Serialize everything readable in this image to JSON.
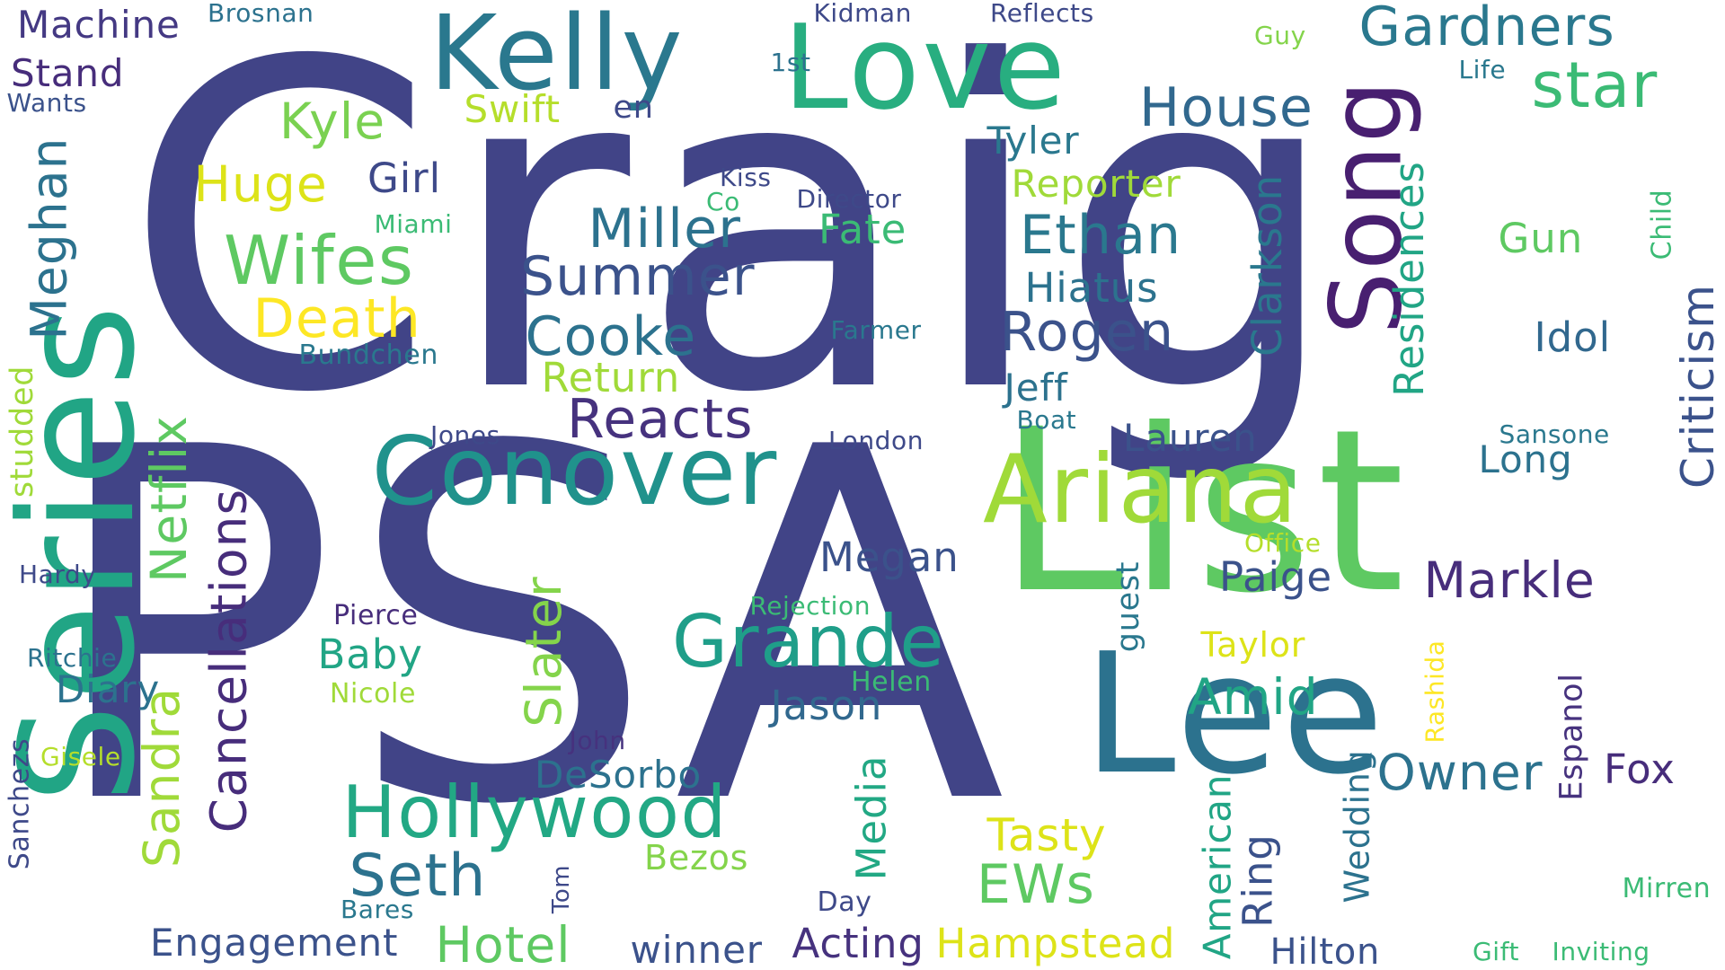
{
  "words": [
    {
      "text": "Craig",
      "color": "#414487",
      "vertical": false
    },
    {
      "text": "PSA",
      "color": "#414487",
      "vertical": false
    },
    {
      "text": "List",
      "color": "#5ec962",
      "vertical": false
    },
    {
      "text": "Lee",
      "color": "#2c728e",
      "vertical": false
    },
    {
      "text": "Series",
      "color": "#21a585",
      "vertical": true
    },
    {
      "text": "Love",
      "color": "#28ae80",
      "vertical": false
    },
    {
      "text": "Kelly",
      "color": "#2a788e",
      "vertical": false
    },
    {
      "text": "Conover",
      "color": "#20928c",
      "vertical": false
    },
    {
      "text": "Ariana",
      "color": "#a0da39",
      "vertical": false
    },
    {
      "text": "Song",
      "color": "#481f70",
      "vertical": true
    },
    {
      "text": "Hollywood",
      "color": "#22a884",
      "vertical": false
    },
    {
      "text": "Grande",
      "color": "#1f9e89",
      "vertical": false
    },
    {
      "text": "Gardners",
      "color": "#2a788e",
      "vertical": false
    },
    {
      "text": "star",
      "color": "#3bbb75",
      "vertical": false
    },
    {
      "text": "House",
      "color": "#31688e",
      "vertical": false
    },
    {
      "text": "Wifes",
      "color": "#5ec962",
      "vertical": false
    },
    {
      "text": "Death",
      "color": "#fde725",
      "vertical": false
    },
    {
      "text": "Machine",
      "color": "#443983",
      "vertical": false
    },
    {
      "text": "Stand",
      "color": "#472d7b",
      "vertical": false
    },
    {
      "text": "Wants",
      "color": "#3b528b",
      "vertical": false
    },
    {
      "text": "Brosnan",
      "color": "#2c728e",
      "vertical": false
    },
    {
      "text": "Kidman",
      "color": "#3e4989",
      "vertical": false
    },
    {
      "text": "Reflects",
      "color": "#3e4989",
      "vertical": false
    },
    {
      "text": "Guy",
      "color": "#84d44b",
      "vertical": false
    },
    {
      "text": "1st",
      "color": "#2c728e",
      "vertical": false
    },
    {
      "text": "Life",
      "color": "#2a788e",
      "vertical": false
    },
    {
      "text": "Kyle",
      "color": "#7ad151",
      "vertical": false
    },
    {
      "text": "Swift",
      "color": "#b5de2b",
      "vertical": false
    },
    {
      "text": "en",
      "color": "#3e4989",
      "vertical": false
    },
    {
      "text": "Huge",
      "color": "#dde318",
      "vertical": false
    },
    {
      "text": "Girl",
      "color": "#3e4989",
      "vertical": false
    },
    {
      "text": "Miami",
      "color": "#3bbb75",
      "vertical": false
    },
    {
      "text": "Meghan",
      "color": "#2c728e",
      "vertical": true
    },
    {
      "text": "Kiss",
      "color": "#3e4989",
      "vertical": false
    },
    {
      "text": "Co",
      "color": "#3bbb75",
      "vertical": false
    },
    {
      "text": "Director",
      "color": "#3e4989",
      "vertical": false
    },
    {
      "text": "Tyler",
      "color": "#2a788e",
      "vertical": false
    },
    {
      "text": "Reporter",
      "color": "#a0da39",
      "vertical": false
    },
    {
      "text": "Miller",
      "color": "#2c728e",
      "vertical": false
    },
    {
      "text": "Fate",
      "color": "#3bbb75",
      "vertical": false
    },
    {
      "text": "Ethan",
      "color": "#2a788e",
      "vertical": false
    },
    {
      "text": "Summer",
      "color": "#3b528b",
      "vertical": false
    },
    {
      "text": "Hiatus",
      "color": "#2c728e",
      "vertical": false
    },
    {
      "text": "Cooke",
      "color": "#2c728e",
      "vertical": false
    },
    {
      "text": "Rogen",
      "color": "#3b528b",
      "vertical": false
    },
    {
      "text": "Farmer",
      "color": "#2a788e",
      "vertical": false
    },
    {
      "text": "Bundchen",
      "color": "#2a788e",
      "vertical": false
    },
    {
      "text": "Return",
      "color": "#a0da39",
      "vertical": false
    },
    {
      "text": "Jeff",
      "color": "#2c728e",
      "vertical": false
    },
    {
      "text": "Boat",
      "color": "#2a788e",
      "vertical": false
    },
    {
      "text": "Reacts",
      "color": "#46327e",
      "vertical": false
    },
    {
      "text": "Jones",
      "color": "#3e4989",
      "vertical": false
    },
    {
      "text": "London",
      "color": "#3e4989",
      "vertical": false
    },
    {
      "text": "Lauren",
      "color": "#3b528b",
      "vertical": false
    },
    {
      "text": "Clarkson",
      "color": "#2a788e",
      "vertical": true
    },
    {
      "text": "Residences",
      "color": "#21a585",
      "vertical": true
    },
    {
      "text": "Gun",
      "color": "#5ec962",
      "vertical": false
    },
    {
      "text": "Child",
      "color": "#3bbb75",
      "vertical": true
    },
    {
      "text": "Criticism",
      "color": "#3b528b",
      "vertical": true
    },
    {
      "text": "Idol",
      "color": "#31688e",
      "vertical": false
    },
    {
      "text": "Sansone",
      "color": "#2a788e",
      "vertical": false
    },
    {
      "text": "Long",
      "color": "#2c728e",
      "vertical": false
    },
    {
      "text": "Netflix",
      "color": "#5ec962",
      "vertical": true
    },
    {
      "text": "studded",
      "color": "#a0da39",
      "vertical": true
    },
    {
      "text": "Cancellations",
      "color": "#472d7b",
      "vertical": true
    },
    {
      "text": "Sandra",
      "color": "#a0da39",
      "vertical": true
    },
    {
      "text": "Megan",
      "color": "#3b528b",
      "vertical": false
    },
    {
      "text": "Office",
      "color": "#b5de2b",
      "vertical": false
    },
    {
      "text": "Paige",
      "color": "#3b528b",
      "vertical": false
    },
    {
      "text": "Markle",
      "color": "#472d7b",
      "vertical": false
    },
    {
      "text": "guest",
      "color": "#2a788e",
      "vertical": true
    },
    {
      "text": "Hardy",
      "color": "#3e4989",
      "vertical": false
    },
    {
      "text": "Pierce",
      "color": "#472d7b",
      "vertical": false
    },
    {
      "text": "Rejection",
      "color": "#3bbb75",
      "vertical": false
    },
    {
      "text": "Baby",
      "color": "#21a585",
      "vertical": false
    },
    {
      "text": "Slater",
      "color": "#84d44b",
      "vertical": true
    },
    {
      "text": "Taylor",
      "color": "#dde318",
      "vertical": false
    },
    {
      "text": "Amid",
      "color": "#21a585",
      "vertical": false
    },
    {
      "text": "Ritchie",
      "color": "#2c728e",
      "vertical": false
    },
    {
      "text": "Diary",
      "color": "#2c728e",
      "vertical": false
    },
    {
      "text": "Nicole",
      "color": "#a0da39",
      "vertical": false
    },
    {
      "text": "Helen",
      "color": "#3bbb75",
      "vertical": false
    },
    {
      "text": "Jason",
      "color": "#31688e",
      "vertical": false
    },
    {
      "text": "Rashida",
      "color": "#fde725",
      "vertical": true
    },
    {
      "text": "Espanol",
      "color": "#46327e",
      "vertical": true
    },
    {
      "text": "John",
      "color": "#46327e",
      "vertical": false
    },
    {
      "text": "Gisele",
      "color": "#b5de2b",
      "vertical": false
    },
    {
      "text": "Sanchezs",
      "color": "#3e4989",
      "vertical": true
    },
    {
      "text": "DeSorbo",
      "color": "#2c728e",
      "vertical": false
    },
    {
      "text": "Owner",
      "color": "#2c728e",
      "vertical": false
    },
    {
      "text": "Fox",
      "color": "#472d7b",
      "vertical": false
    },
    {
      "text": "Media",
      "color": "#22a884",
      "vertical": true
    },
    {
      "text": "Wedding",
      "color": "#2c728e",
      "vertical": true
    },
    {
      "text": "American",
      "color": "#21a585",
      "vertical": true
    },
    {
      "text": "Tasty",
      "color": "#dde318",
      "vertical": false
    },
    {
      "text": "Bezos",
      "color": "#84d44b",
      "vertical": false
    },
    {
      "text": "Seth",
      "color": "#2c728e",
      "vertical": false
    },
    {
      "text": "EWs",
      "color": "#5ec962",
      "vertical": false
    },
    {
      "text": "Ring",
      "color": "#3b528b",
      "vertical": true
    },
    {
      "text": "Mirren",
      "color": "#3bbb75",
      "vertical": false
    },
    {
      "text": "Tom",
      "color": "#3e4989",
      "vertical": true
    },
    {
      "text": "Day",
      "color": "#3e4989",
      "vertical": false
    },
    {
      "text": "Bares",
      "color": "#2a788e",
      "vertical": false
    },
    {
      "text": "Engagement",
      "color": "#3b528b",
      "vertical": false
    },
    {
      "text": "Hotel",
      "color": "#5ec962",
      "vertical": false
    },
    {
      "text": "winner",
      "color": "#3b528b",
      "vertical": false
    },
    {
      "text": "Acting",
      "color": "#46327e",
      "vertical": false
    },
    {
      "text": "Hampstead",
      "color": "#dde318",
      "vertical": false
    },
    {
      "text": "Hilton",
      "color": "#3b528b",
      "vertical": false
    },
    {
      "text": "Gift",
      "color": "#3bbb75",
      "vertical": false
    },
    {
      "text": "Inviting",
      "color": "#3bbb75",
      "vertical": false
    }
  ]
}
